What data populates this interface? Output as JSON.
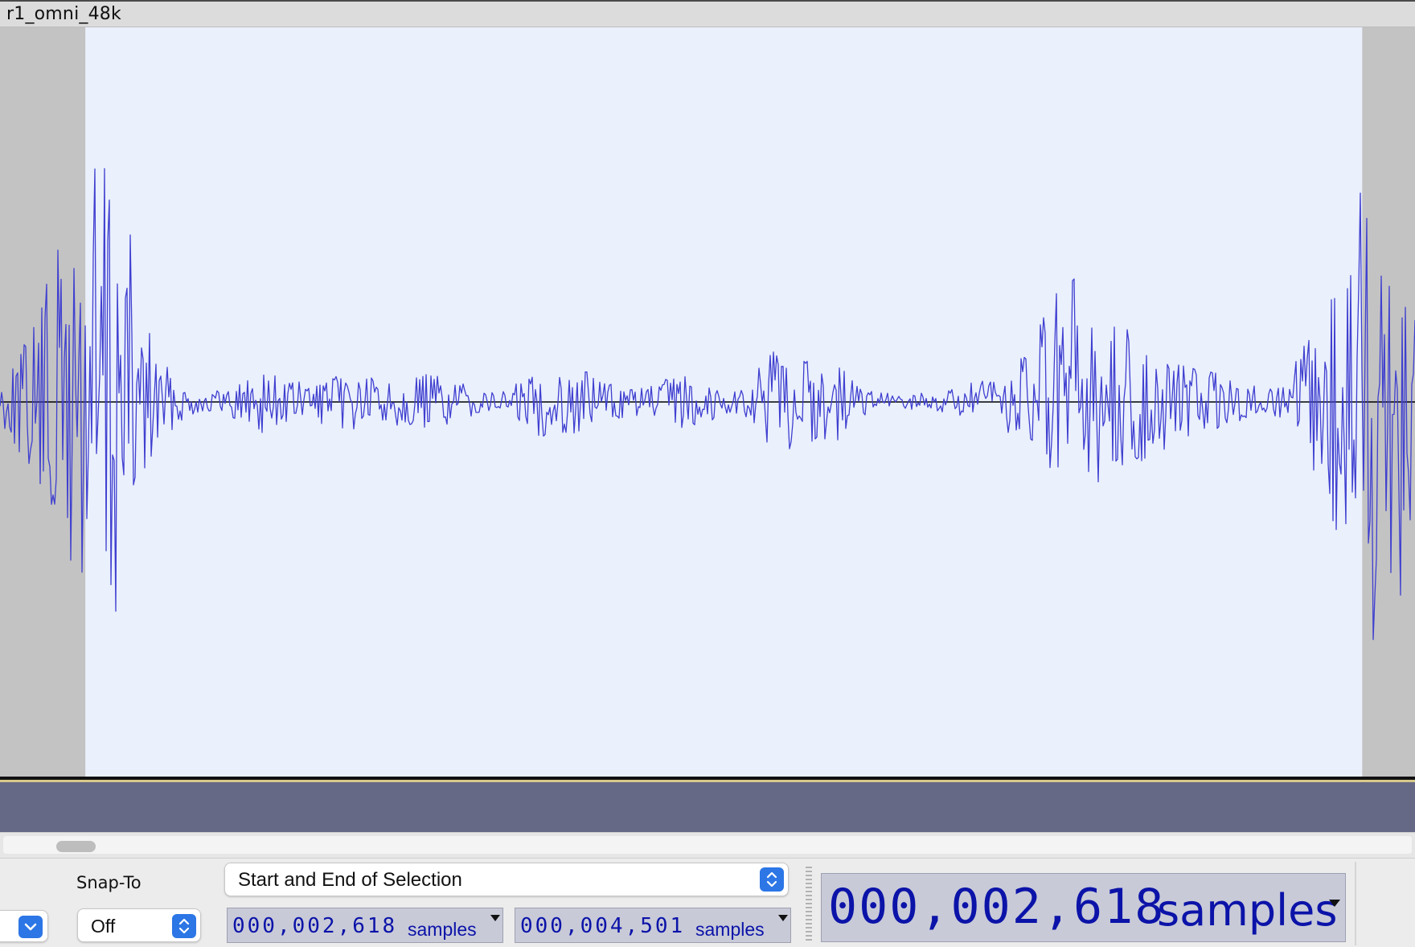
{
  "track": {
    "name": "r1_omni_48k",
    "wave_color": "#3f3fd0",
    "selection_color": "#eaf0fc",
    "unselected_color": "#c3c3c3",
    "zero_line_color": "#000000",
    "selection": {
      "start_fraction": 0.0603,
      "end_fraction": 0.9627
    }
  },
  "toolbar": {
    "snap_to_label": "Snap-To",
    "snap_to_value": "Off",
    "selection_mode": "Start and End of Selection",
    "selection_start": {
      "digits": "000,002,618",
      "unit": "samples"
    },
    "selection_end": {
      "digits": "000,004,501",
      "unit": "samples"
    },
    "audio_position": {
      "digits": "000,002,618",
      "unit": "samples"
    }
  },
  "icons": {
    "rate_dropdown": "chevron-down-icon",
    "snap_dropdown": "up-down-chevrons-icon",
    "mode_dropdown": "up-down-chevrons-icon",
    "time_menu": "triangle-down-icon"
  },
  "colors": {
    "accent": "#2c76e6",
    "time_text": "#0b13a8",
    "time_bg": "#c8cad8",
    "empty_track": "#666985"
  }
}
